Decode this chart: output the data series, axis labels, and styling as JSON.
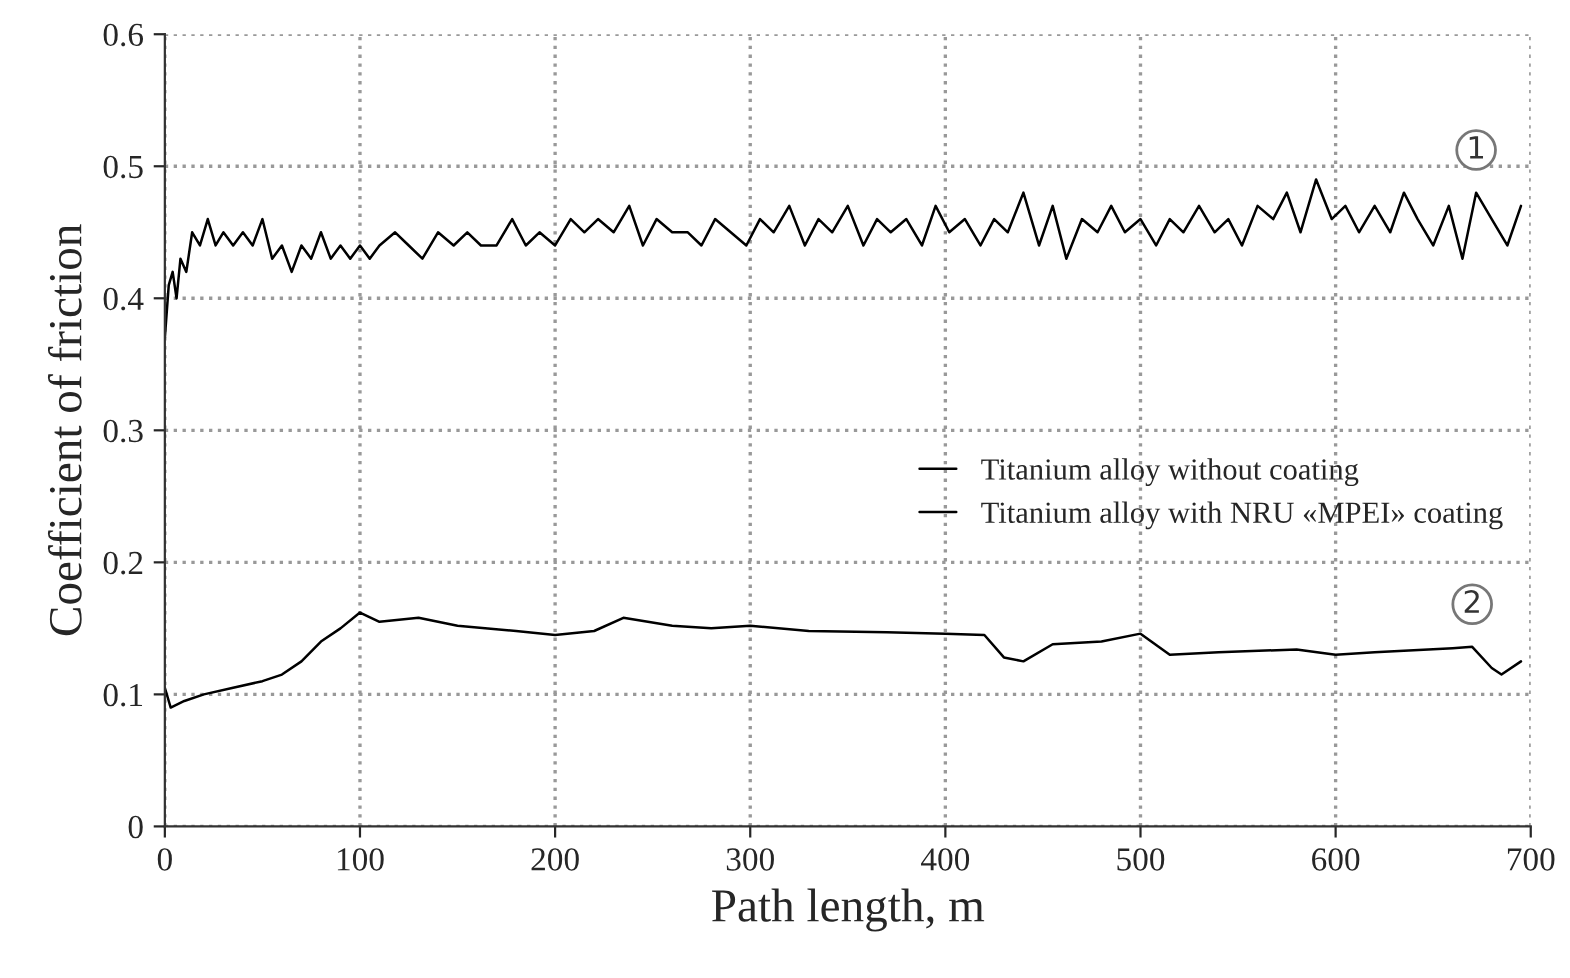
{
  "chart_data": {
    "type": "line",
    "xlabel": "Path length, m",
    "ylabel": "Coefficient of friction",
    "xlim": [
      0,
      700
    ],
    "xticks": [
      0,
      100,
      200,
      300,
      400,
      500,
      600,
      700
    ],
    "ylim": [
      0,
      0.6
    ],
    "yticks": [
      0,
      0.1,
      0.2,
      0.3,
      0.4,
      0.5,
      0.6
    ],
    "grid": true,
    "legend": "right",
    "series": [
      {
        "name": "Titanium alloy without coating",
        "color": "#000000",
        "x": [
          0,
          2,
          4,
          6,
          8,
          11,
          14,
          18,
          22,
          26,
          30,
          35,
          40,
          45,
          50,
          55,
          60,
          65,
          70,
          75,
          80,
          85,
          90,
          95,
          100,
          105,
          110,
          118,
          125,
          132,
          140,
          148,
          155,
          162,
          170,
          178,
          185,
          192,
          200,
          208,
          215,
          222,
          230,
          238,
          245,
          252,
          260,
          268,
          275,
          282,
          290,
          298,
          305,
          312,
          320,
          328,
          335,
          342,
          350,
          358,
          365,
          372,
          380,
          388,
          395,
          402,
          410,
          418,
          425,
          432,
          440,
          448,
          455,
          462,
          470,
          478,
          485,
          492,
          500,
          508,
          515,
          522,
          530,
          538,
          545,
          552,
          560,
          568,
          575,
          582,
          590,
          598,
          605,
          612,
          620,
          628,
          635,
          642,
          650,
          658,
          665,
          672,
          680,
          688,
          695
        ],
        "values": [
          0.37,
          0.41,
          0.42,
          0.4,
          0.43,
          0.42,
          0.45,
          0.44,
          0.46,
          0.44,
          0.45,
          0.44,
          0.45,
          0.44,
          0.46,
          0.43,
          0.44,
          0.42,
          0.44,
          0.43,
          0.45,
          0.43,
          0.44,
          0.43,
          0.44,
          0.43,
          0.44,
          0.45,
          0.44,
          0.43,
          0.45,
          0.44,
          0.45,
          0.44,
          0.44,
          0.46,
          0.44,
          0.45,
          0.44,
          0.46,
          0.45,
          0.46,
          0.45,
          0.47,
          0.44,
          0.46,
          0.45,
          0.45,
          0.44,
          0.46,
          0.45,
          0.44,
          0.46,
          0.45,
          0.47,
          0.44,
          0.46,
          0.45,
          0.47,
          0.44,
          0.46,
          0.45,
          0.46,
          0.44,
          0.47,
          0.45,
          0.46,
          0.44,
          0.46,
          0.45,
          0.48,
          0.44,
          0.47,
          0.43,
          0.46,
          0.45,
          0.47,
          0.45,
          0.46,
          0.44,
          0.46,
          0.45,
          0.47,
          0.45,
          0.46,
          0.44,
          0.47,
          0.46,
          0.48,
          0.45,
          0.49,
          0.46,
          0.47,
          0.45,
          0.47,
          0.45,
          0.48,
          0.46,
          0.44,
          0.47,
          0.43,
          0.48,
          0.46,
          0.44,
          0.47
        ]
      },
      {
        "name": "Titanium alloy with NRU «MPEI» coating",
        "color": "#000000",
        "x": [
          0,
          3,
          10,
          20,
          35,
          50,
          60,
          70,
          80,
          90,
          100,
          110,
          130,
          150,
          180,
          200,
          220,
          235,
          260,
          280,
          300,
          330,
          370,
          400,
          420,
          430,
          440,
          455,
          480,
          500,
          515,
          540,
          580,
          600,
          620,
          660,
          670,
          680,
          685,
          695
        ],
        "values": [
          0.105,
          0.09,
          0.095,
          0.1,
          0.105,
          0.11,
          0.115,
          0.125,
          0.14,
          0.15,
          0.162,
          0.155,
          0.158,
          0.152,
          0.148,
          0.145,
          0.148,
          0.158,
          0.152,
          0.15,
          0.152,
          0.148,
          0.147,
          0.146,
          0.145,
          0.128,
          0.125,
          0.138,
          0.14,
          0.146,
          0.13,
          0.132,
          0.134,
          0.13,
          0.132,
          0.135,
          0.136,
          0.12,
          0.115,
          0.125
        ]
      }
    ],
    "annotations": [
      "1",
      "2"
    ]
  }
}
